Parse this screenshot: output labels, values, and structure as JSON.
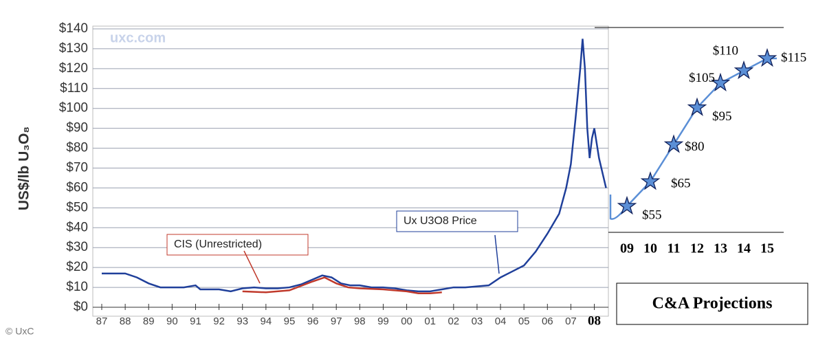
{
  "chart_data": [
    {
      "type": "line",
      "y_label": "US$/lb U₃O₈",
      "annotations": [
        "uxc.com",
        "© UxC"
      ],
      "xlim": [
        1987,
        2008.6
      ],
      "xticks": [
        {
          "value": 1987,
          "label": "87"
        },
        {
          "value": 1988,
          "label": "88"
        },
        {
          "value": 1989,
          "label": "89"
        },
        {
          "value": 1990,
          "label": "90"
        },
        {
          "value": 1991,
          "label": "91"
        },
        {
          "value": 1992,
          "label": "92"
        },
        {
          "value": 1993,
          "label": "93"
        },
        {
          "value": 1994,
          "label": "94"
        },
        {
          "value": 1995,
          "label": "95"
        },
        {
          "value": 1996,
          "label": "96"
        },
        {
          "value": 1997,
          "label": "97"
        },
        {
          "value": 1998,
          "label": "98"
        },
        {
          "value": 1999,
          "label": "99"
        },
        {
          "value": 2000,
          "label": "00"
        },
        {
          "value": 2001,
          "label": "01"
        },
        {
          "value": 2002,
          "label": "02"
        },
        {
          "value": 2003,
          "label": "03"
        },
        {
          "value": 2004,
          "label": "04"
        },
        {
          "value": 2005,
          "label": "05"
        },
        {
          "value": 2006,
          "label": "06"
        },
        {
          "value": 2007,
          "label": "07"
        },
        {
          "value": 2008,
          "label": "08"
        }
      ],
      "ylim": [
        0,
        140
      ],
      "yticks": [
        {
          "value": 0,
          "label": "$0"
        },
        {
          "value": 10,
          "label": "$10"
        },
        {
          "value": 20,
          "label": "$20"
        },
        {
          "value": 30,
          "label": "$30"
        },
        {
          "value": 40,
          "label": "$40"
        },
        {
          "value": 50,
          "label": "$50"
        },
        {
          "value": 60,
          "label": "$60"
        },
        {
          "value": 70,
          "label": "$70"
        },
        {
          "value": 80,
          "label": "$80"
        },
        {
          "value": 90,
          "label": "$90"
        },
        {
          "value": 100,
          "label": "$100"
        },
        {
          "value": 110,
          "label": "$110"
        },
        {
          "value": 120,
          "label": "$120"
        },
        {
          "value": 130,
          "label": "$130"
        },
        {
          "value": 140,
          "label": "$140"
        }
      ],
      "grid": true,
      "series": [
        {
          "name": "Ux U3O8 Price",
          "color": "#1f3f9a",
          "x": [
            1987,
            1988,
            1988.5,
            1989,
            1989.5,
            1990,
            1990.5,
            1991,
            1991.2,
            1992,
            1992.5,
            1993,
            1993.5,
            1994,
            1994.5,
            1995,
            1995.5,
            1996,
            1996.4,
            1996.8,
            1997.2,
            1997.6,
            1998,
            1998.5,
            1999,
            1999.5,
            2000,
            2000.5,
            2001,
            2001.5,
            2002,
            2002.5,
            2003,
            2003.5,
            2004,
            2004.5,
            2005,
            2005.5,
            2006,
            2006.5,
            2006.8,
            2007,
            2007.2,
            2007.4,
            2007.5,
            2007.6,
            2007.7,
            2007.8,
            2007.9,
            2008,
            2008.2,
            2008.4,
            2008.5
          ],
          "values": [
            17,
            17,
            15,
            12,
            10,
            10,
            10,
            11,
            9,
            9,
            8,
            9.5,
            10,
            9.5,
            9.5,
            10,
            11.5,
            14,
            16,
            15,
            12,
            11,
            11,
            10,
            10,
            9.5,
            8.5,
            8,
            8,
            9,
            10,
            10,
            10.5,
            11,
            15,
            18,
            21,
            28,
            37,
            47,
            60,
            72,
            95,
            120,
            135,
            120,
            90,
            75,
            85,
            90,
            75,
            65,
            60
          ]
        },
        {
          "name": "CIS (Unrestricted)",
          "color": "#c0392b",
          "x": [
            1993,
            1994,
            1995,
            1996,
            1996.5,
            1997,
            1997.5,
            1998,
            1999,
            2000,
            2000.5,
            2001,
            2001.5
          ],
          "values": [
            8,
            7.5,
            8.5,
            13,
            15,
            12,
            10,
            9.5,
            9,
            8,
            7,
            7,
            7.5
          ]
        }
      ]
    },
    {
      "type": "projection",
      "title": "C&A Projections",
      "categories": [
        "09",
        "10",
        "11",
        "12",
        "13",
        "14",
        "15"
      ],
      "values": [
        55,
        65,
        80,
        95,
        105,
        110,
        115
      ],
      "value_labels": [
        "$55",
        "$65",
        "$80",
        "$95",
        "$105",
        "$110",
        "$115"
      ],
      "color": "#5b8fd6"
    }
  ]
}
